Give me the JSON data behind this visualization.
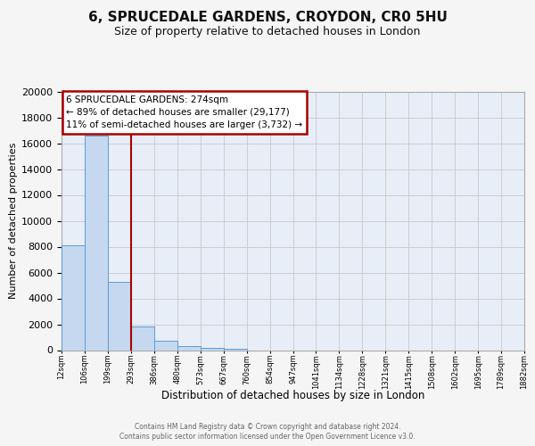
{
  "title": "6, SPRUCEDALE GARDENS, CROYDON, CR0 5HU",
  "subtitle": "Size of property relative to detached houses in London",
  "xlabel": "Distribution of detached houses by size in London",
  "ylabel": "Number of detached properties",
  "bar_values": [
    8100,
    16600,
    5300,
    1800,
    700,
    300,
    150,
    100,
    0,
    0,
    0,
    0,
    0,
    0,
    0,
    0,
    0,
    0,
    0,
    0
  ],
  "bin_labels": [
    "12sqm",
    "106sqm",
    "199sqm",
    "293sqm",
    "386sqm",
    "480sqm",
    "573sqm",
    "667sqm",
    "760sqm",
    "854sqm",
    "947sqm",
    "1041sqm",
    "1134sqm",
    "1228sqm",
    "1321sqm",
    "1415sqm",
    "1508sqm",
    "1602sqm",
    "1695sqm",
    "1789sqm",
    "1882sqm"
  ],
  "ylim": [
    0,
    20000
  ],
  "yticks": [
    0,
    2000,
    4000,
    6000,
    8000,
    10000,
    12000,
    14000,
    16000,
    18000,
    20000
  ],
  "bar_color": "#c5d8f0",
  "bar_edge_color": "#5b9bd5",
  "vline_x": 3,
  "vline_color": "#aa0000",
  "annotation_line1": "6 SPRUCEDALE GARDENS: 274sqm",
  "annotation_line2": "← 89% of detached houses are smaller (29,177)",
  "annotation_line3": "11% of semi-detached houses are larger (3,732) →",
  "annotation_box_facecolor": "#ffffff",
  "annotation_box_edgecolor": "#aa0000",
  "footer_line1": "Contains HM Land Registry data © Crown copyright and database right 2024.",
  "footer_line2": "Contains public sector information licensed under the Open Government Licence v3.0.",
  "fig_facecolor": "#f5f5f5",
  "axes_facecolor": "#e8eef8",
  "grid_color": "#c8c8c8",
  "title_fontsize": 11,
  "subtitle_fontsize": 9
}
